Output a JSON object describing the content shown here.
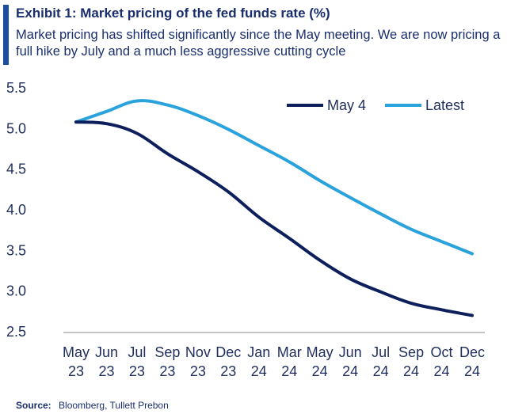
{
  "header": {
    "title": "Exhibit 1: Market pricing of the fed funds rate (%)",
    "subtitle": "Market pricing has shifted significantly since the May meeting. We are now pricing a full hike by July and a much less aggressive cutting cycle"
  },
  "source": {
    "label": "Source:",
    "text": "Bloomberg, Tullett Prebon"
  },
  "colors": {
    "accent": "#1a4f9c",
    "title": "#1a2e6e",
    "may4": "#0d1f5c",
    "latest": "#2aa3dc",
    "axis": "#888888"
  },
  "chart_data": {
    "type": "line",
    "title": "Market pricing of the fed funds rate (%)",
    "xlabel": "",
    "ylabel": "",
    "categories": [
      "May 23",
      "Jun 23",
      "Jul 23",
      "Sep 23",
      "Nov 23",
      "Dec 23",
      "Jan 24",
      "Mar 24",
      "May 24",
      "Jun 24",
      "Jul 24",
      "Sep 24",
      "Oct 24",
      "Dec 24"
    ],
    "category_lines": [
      [
        "May",
        "23"
      ],
      [
        "Jun",
        "23"
      ],
      [
        "Jul",
        "23"
      ],
      [
        "Sep",
        "23"
      ],
      [
        "Nov",
        "23"
      ],
      [
        "Dec",
        "23"
      ],
      [
        "Jan",
        "24"
      ],
      [
        "Mar",
        "24"
      ],
      [
        "May",
        "24"
      ],
      [
        "Jun",
        "24"
      ],
      [
        "Jul",
        "24"
      ],
      [
        "Sep",
        "24"
      ],
      [
        "Oct",
        "24"
      ],
      [
        "Dec",
        "24"
      ]
    ],
    "ylim": [
      2.5,
      5.5
    ],
    "yticks": [
      2.5,
      3.0,
      3.5,
      4.0,
      4.5,
      5.0,
      5.5
    ],
    "ytick_labels": [
      "2.5",
      "3.0",
      "3.5",
      "4.0",
      "4.5",
      "5.0",
      "5.5"
    ],
    "grid": false,
    "legend_position": "top-right",
    "series": [
      {
        "name": "May 4",
        "color": "#0d1f5c",
        "values": [
          5.07,
          5.05,
          4.93,
          4.68,
          4.46,
          4.21,
          3.9,
          3.64,
          3.37,
          3.14,
          2.98,
          2.84,
          2.76,
          2.69
        ]
      },
      {
        "name": "Latest",
        "color": "#2aa3dc",
        "values": [
          5.07,
          5.2,
          5.33,
          5.28,
          5.15,
          4.98,
          4.78,
          4.58,
          4.35,
          4.14,
          3.94,
          3.75,
          3.6,
          3.45
        ]
      }
    ]
  }
}
